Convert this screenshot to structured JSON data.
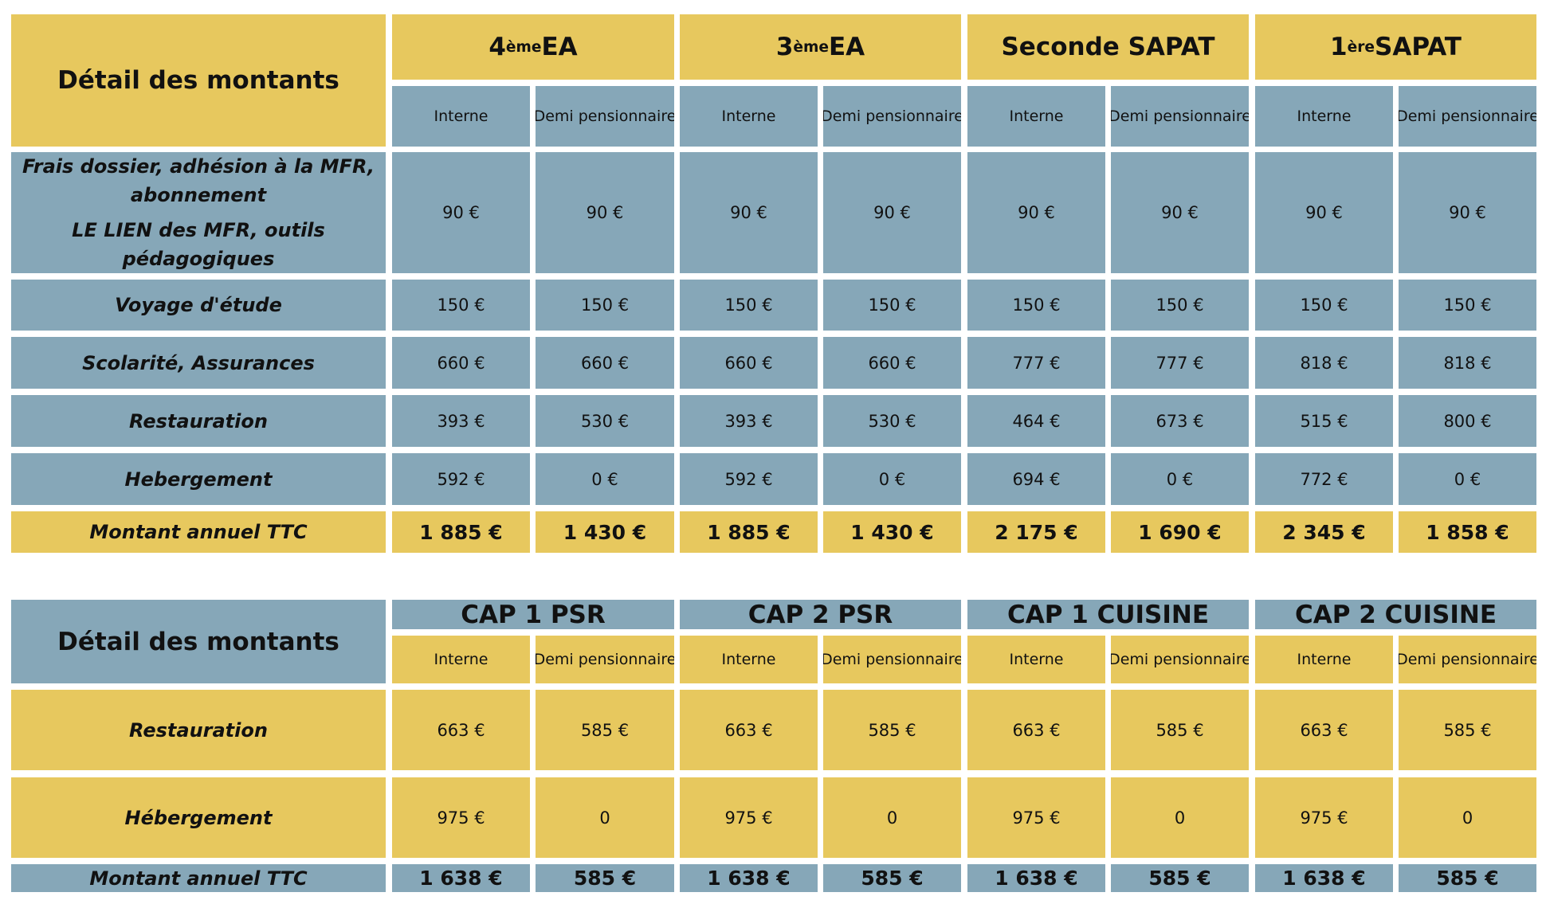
{
  "colors": {
    "gold": "#e7c85e",
    "blue": "#86a7b8"
  },
  "table1": {
    "corner_label": "Détail des montants",
    "groups": [
      {
        "pre": "4",
        "sup": "ème",
        "post": " EA"
      },
      {
        "pre": "3",
        "sup": "ème",
        "post": " EA"
      },
      {
        "pre": "Seconde SAPAT",
        "sup": "",
        "post": ""
      },
      {
        "pre": "1",
        "sup": "ère",
        "post": " SAPAT"
      }
    ],
    "subheaders": [
      "Interne",
      "Demi pensionnaire"
    ],
    "rows": [
      {
        "label_lines": [
          "Frais dossier, adhésion à la MFR,",
          "abonnement",
          "",
          "LE LIEN des MFR, outils pédagogiques"
        ],
        "values": [
          "90 €",
          "90 €",
          "90 €",
          "90 €",
          "90 €",
          "90 €",
          "90 €",
          "90 €"
        ]
      },
      {
        "label_lines": [
          "Voyage d'étude"
        ],
        "values": [
          "150 €",
          "150 €",
          "150 €",
          "150 €",
          "150 €",
          "150 €",
          "150 €",
          "150 €"
        ]
      },
      {
        "label_lines": [
          "Scolarité, Assurances"
        ],
        "values": [
          "660 €",
          "660 €",
          "660 €",
          "660 €",
          "777 €",
          "777 €",
          "818 €",
          "818 €"
        ]
      },
      {
        "label_lines": [
          "Restauration"
        ],
        "values": [
          "393 €",
          "530 €",
          "393 €",
          "530 €",
          "464 €",
          "673 €",
          "515 €",
          "800 €"
        ]
      },
      {
        "label_lines": [
          "Hebergement"
        ],
        "values": [
          "592 €",
          "0 €",
          "592 €",
          "0 €",
          "694 €",
          "0 €",
          "772 €",
          "0 €"
        ]
      }
    ],
    "total": {
      "label": "Montant annuel TTC",
      "values": [
        "1 885 €",
        "1 430 €",
        "1 885 €",
        "1 430 €",
        "2 175 €",
        "1 690 €",
        "2 345 €",
        "1 858 €"
      ]
    }
  },
  "table2": {
    "corner_label": "Détail des montants",
    "groups": [
      "CAP 1 PSR",
      "CAP 2 PSR",
      "CAP 1 CUISINE",
      "CAP 2 CUISINE"
    ],
    "subheaders": [
      "Interne",
      "Demi pensionnaire"
    ],
    "rows": [
      {
        "label": "Restauration",
        "values": [
          "663 €",
          "585 €",
          "663 €",
          "585 €",
          "663 €",
          "585 €",
          "663 €",
          "585 €"
        ]
      },
      {
        "label": "Hébergement",
        "values": [
          "975 €",
          "0",
          "975 €",
          "0",
          "975 €",
          "0",
          "975 €",
          "0"
        ]
      }
    ],
    "total": {
      "label": "Montant annuel TTC",
      "values": [
        "1 638 €",
        "585 €",
        "1 638 €",
        "585 €",
        "1 638 €",
        "585 €",
        "1 638 €",
        "585 €"
      ]
    }
  }
}
